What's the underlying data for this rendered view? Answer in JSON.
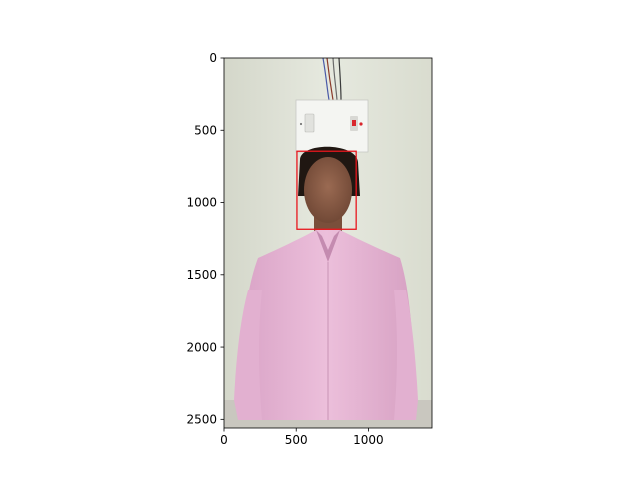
{
  "chart_data": {
    "type": "image",
    "title": "",
    "xlabel": "",
    "ylabel": "",
    "xlim": [
      0,
      1440
    ],
    "ylim": [
      2560,
      0
    ],
    "x_ticks": [
      {
        "value": 0,
        "label": "0"
      },
      {
        "value": 500,
        "label": "500"
      },
      {
        "value": 1000,
        "label": "1000"
      }
    ],
    "y_ticks": [
      {
        "value": 0,
        "label": "0"
      },
      {
        "value": 500,
        "label": "500"
      },
      {
        "value": 1000,
        "label": "1000"
      },
      {
        "value": 1500,
        "label": "1500"
      },
      {
        "value": 2000,
        "label": "2000"
      },
      {
        "value": 2500,
        "label": "2500"
      }
    ],
    "grid": false,
    "annotations": [
      {
        "type": "rectangle",
        "x0": 505,
        "y0": 645,
        "x1": 915,
        "y1": 1185,
        "color": "#e8161d"
      }
    ]
  }
}
